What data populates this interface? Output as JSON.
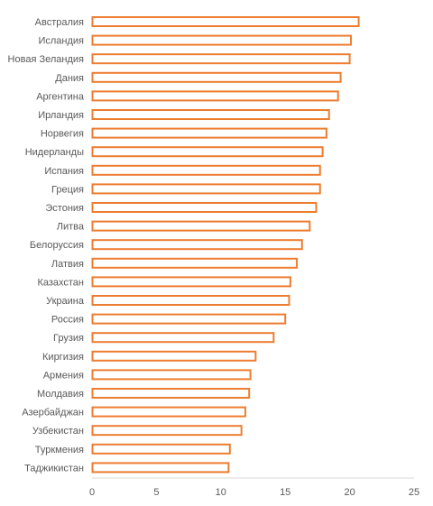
{
  "chart_data": {
    "type": "bar",
    "orientation": "horizontal",
    "categories": [
      "Австралия",
      "Исландия",
      "Новая Зеландия",
      "Дания",
      "Аргентина",
      "Ирландия",
      "Норвегия",
      "Нидерланды",
      "Испания",
      "Греция",
      "Эстония",
      "Литва",
      "Белоруссия",
      "Латвия",
      "Казахстан",
      "Украина",
      "Россия",
      "Грузия",
      "Киргизия",
      "Армения",
      "Молдавия",
      "Азербайджан",
      "Узбекистан",
      "Туркмения",
      "Таджикистан"
    ],
    "values": [
      20.7,
      20.1,
      20.0,
      19.3,
      19.1,
      18.4,
      18.2,
      17.9,
      17.7,
      17.7,
      17.4,
      16.9,
      16.3,
      15.9,
      15.4,
      15.3,
      15.0,
      14.1,
      12.7,
      12.3,
      12.2,
      11.9,
      11.6,
      10.7,
      10.6
    ],
    "xlim": [
      0,
      25
    ],
    "x_ticks": [
      "0",
      "5",
      "10",
      "15",
      "20",
      "25"
    ],
    "grid": false,
    "legend": "none",
    "colors": {
      "bar_stroke": "#ED7D31",
      "bar_fill": "#FFFFFF",
      "label": "#595959",
      "axis": "#D9D9D9"
    }
  }
}
